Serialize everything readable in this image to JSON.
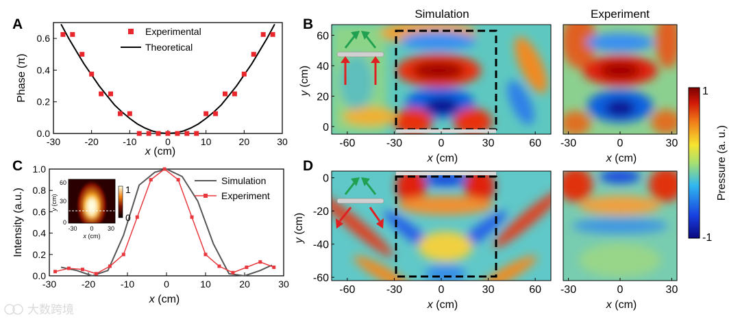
{
  "panels": {
    "A": "A",
    "B": "B",
    "C": "C",
    "D": "D"
  },
  "chart_data": [
    {
      "panel": "A",
      "type": "scatter",
      "ylabel": "Phase (π)",
      "xlabel_var": "x",
      "xlabel_unit": "(cm)",
      "xlim": [
        -30,
        30
      ],
      "ylim": [
        0,
        0.7
      ],
      "xticks": [
        "-30",
        "-20",
        "-10",
        "0",
        "10",
        "20",
        "30"
      ],
      "yticks": [
        "0.0",
        "0.2",
        "0.4",
        "0.6"
      ],
      "series": [
        {
          "name": "Experimental",
          "marker": "square",
          "color": "#e8262b",
          "x": [
            -27.5,
            -25,
            -22.5,
            -20,
            -17.5,
            -15,
            -12.5,
            -10,
            -7.5,
            -5,
            -2.5,
            0,
            2.5,
            5,
            7.5,
            10,
            12.5,
            15,
            17.5,
            20,
            22.5,
            25,
            27.5
          ],
          "y": [
            0.625,
            0.625,
            0.5,
            0.375,
            0.25,
            0.25,
            0.125,
            0.125,
            0,
            0,
            0,
            0,
            0,
            0,
            0,
            0.125,
            0.125,
            0.25,
            0.25,
            0.375,
            0.5,
            0.625,
            0.625
          ]
        },
        {
          "name": "Theoretical",
          "line": true,
          "color": "#000000",
          "x": [
            -28,
            -26,
            -24,
            -22,
            -20,
            -18,
            -16,
            -14,
            -12,
            -10,
            -8,
            -6,
            -4,
            -2,
            0,
            2,
            4,
            6,
            8,
            10,
            12,
            14,
            16,
            18,
            20,
            22,
            24,
            26,
            28
          ],
          "y": [
            0.69,
            0.6,
            0.52,
            0.44,
            0.37,
            0.3,
            0.24,
            0.18,
            0.135,
            0.095,
            0.06,
            0.034,
            0.015,
            0.004,
            0,
            0.004,
            0.015,
            0.034,
            0.06,
            0.095,
            0.135,
            0.18,
            0.24,
            0.3,
            0.37,
            0.44,
            0.52,
            0.6,
            0.69
          ]
        }
      ]
    },
    {
      "panel": "C",
      "type": "line",
      "ylabel": "Intensity (a.u.)",
      "xlabel_var": "x",
      "xlabel_unit": "(cm)",
      "xlim": [
        -30,
        30
      ],
      "ylim": [
        0,
        1.0
      ],
      "xticks": [
        "-30",
        "-20",
        "-10",
        "0",
        "10",
        "20",
        "30"
      ],
      "yticks": [
        "0.0",
        "0.2",
        "0.4",
        "0.6",
        "0.8",
        "1.0"
      ],
      "series": [
        {
          "name": "Simulation",
          "color": "#555555",
          "x": [
            -27,
            -23,
            -19,
            -15,
            -11,
            -7,
            -3,
            0,
            4,
            8,
            12,
            16,
            20,
            24,
            27
          ],
          "y": [
            0.08,
            0.05,
            0.0,
            0.05,
            0.38,
            0.85,
            0.97,
            1.0,
            0.93,
            0.7,
            0.3,
            0.02,
            0.0,
            0.05,
            0.1
          ]
        },
        {
          "name": "Experiment",
          "color": "#e8383d",
          "marker": "square",
          "x": [
            -28.5,
            -25,
            -21.5,
            -18,
            -14.5,
            -11,
            -7.5,
            -4,
            -0.5,
            3,
            6.5,
            10,
            13.5,
            17,
            20.5,
            24,
            27.5
          ],
          "y": [
            0.04,
            0.07,
            0.06,
            0.02,
            0.09,
            0.2,
            0.55,
            0.9,
            1.0,
            0.9,
            0.55,
            0.2,
            0.09,
            0.03,
            0.08,
            0.13,
            0.08
          ]
        }
      ],
      "inset": {
        "ylabel_var": "y",
        "ylabel_unit": "(cm)",
        "xlabel_var": "x",
        "xlabel_unit": "(cm)",
        "yticks": [
          "60",
          "30",
          "0"
        ],
        "xticks": [
          "-30",
          "0",
          "30"
        ],
        "colorbar_ticks": [
          "1",
          "0"
        ]
      }
    },
    {
      "panel": "B",
      "type": "heatmap",
      "title_sim": "Simulation",
      "title_exp": "Experiment",
      "ylabel_var": "y",
      "ylabel_unit": "(cm)",
      "xlabel_var": "x",
      "xlabel_unit": "(cm)",
      "sim_xticks": [
        "-60",
        "-30",
        "0",
        "30",
        "60"
      ],
      "exp_xticks": [
        "-30",
        "0",
        "30"
      ],
      "yticks": [
        "60",
        "40",
        "20",
        "0"
      ]
    },
    {
      "panel": "D",
      "type": "heatmap",
      "ylabel_var": "y",
      "ylabel_unit": "(cm)",
      "xlabel_var": "x",
      "xlabel_unit": "(cm)",
      "sim_xticks": [
        "-60",
        "-30",
        "0",
        "30",
        "60"
      ],
      "exp_xticks": [
        "-30",
        "0",
        "30"
      ],
      "yticks": [
        "0",
        "-20",
        "-40",
        "-60"
      ]
    },
    {
      "type": "colorbar",
      "label": "Pressure (a. u.)",
      "max": "1",
      "min": "-1",
      "colors": [
        "#1a0fa0",
        "#1e6cf0",
        "#3cc8e8",
        "#f0e040",
        "#f07020",
        "#c00000",
        "#7a0000"
      ]
    }
  ],
  "watermark": {
    "text": "大数跨境"
  }
}
